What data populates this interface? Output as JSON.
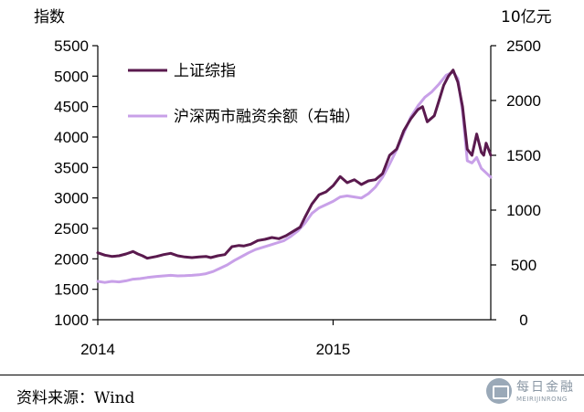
{
  "chart_data": {
    "type": "line",
    "left_axis": {
      "unit": "指数",
      "ylim": [
        1000,
        5500
      ],
      "ticks": [
        "1000",
        "1500",
        "2000",
        "2500",
        "3000",
        "3500",
        "4000",
        "4500",
        "5000",
        "5500"
      ]
    },
    "right_axis": {
      "unit": "10亿元",
      "ylim": [
        0,
        2500
      ],
      "ticks": [
        "0",
        "500",
        "1000",
        "1500",
        "2000",
        "2500"
      ]
    },
    "x_axis": {
      "range": [
        2014.0,
        2015.67
      ],
      "ticks": [
        {
          "value": 2014.0,
          "label": "2014"
        },
        {
          "value": 2015.0,
          "label": "2015"
        }
      ]
    },
    "series": [
      {
        "name": "上证综指",
        "axis": "left",
        "color": "#5a1a4e",
        "points": [
          [
            2014.0,
            2100
          ],
          [
            2014.03,
            2060
          ],
          [
            2014.06,
            2040
          ],
          [
            2014.09,
            2050
          ],
          [
            2014.12,
            2080
          ],
          [
            2014.15,
            2120
          ],
          [
            2014.17,
            2080
          ],
          [
            2014.19,
            2050
          ],
          [
            2014.21,
            2010
          ],
          [
            2014.25,
            2040
          ],
          [
            2014.28,
            2070
          ],
          [
            2014.31,
            2090
          ],
          [
            2014.34,
            2050
          ],
          [
            2014.37,
            2030
          ],
          [
            2014.4,
            2020
          ],
          [
            2014.43,
            2030
          ],
          [
            2014.46,
            2040
          ],
          [
            2014.48,
            2020
          ],
          [
            2014.51,
            2050
          ],
          [
            2014.54,
            2070
          ],
          [
            2014.57,
            2200
          ],
          [
            2014.6,
            2220
          ],
          [
            2014.62,
            2210
          ],
          [
            2014.65,
            2240
          ],
          [
            2014.68,
            2300
          ],
          [
            2014.71,
            2320
          ],
          [
            2014.74,
            2350
          ],
          [
            2014.77,
            2330
          ],
          [
            2014.8,
            2380
          ],
          [
            2014.83,
            2450
          ],
          [
            2014.86,
            2520
          ],
          [
            2014.88,
            2680
          ],
          [
            2014.91,
            2900
          ],
          [
            2014.94,
            3050
          ],
          [
            2014.97,
            3100
          ],
          [
            2015.0,
            3200
          ],
          [
            2015.03,
            3350
          ],
          [
            2015.06,
            3250
          ],
          [
            2015.09,
            3300
          ],
          [
            2015.12,
            3220
          ],
          [
            2015.15,
            3280
          ],
          [
            2015.18,
            3300
          ],
          [
            2015.21,
            3400
          ],
          [
            2015.24,
            3700
          ],
          [
            2015.27,
            3800
          ],
          [
            2015.3,
            4100
          ],
          [
            2015.33,
            4300
          ],
          [
            2015.36,
            4450
          ],
          [
            2015.38,
            4500
          ],
          [
            2015.4,
            4250
          ],
          [
            2015.43,
            4350
          ],
          [
            2015.45,
            4600
          ],
          [
            2015.47,
            4850
          ],
          [
            2015.49,
            5000
          ],
          [
            2015.51,
            5100
          ],
          [
            2015.53,
            4900
          ],
          [
            2015.55,
            4500
          ],
          [
            2015.57,
            3800
          ],
          [
            2015.59,
            3700
          ],
          [
            2015.61,
            4050
          ],
          [
            2015.63,
            3750
          ],
          [
            2015.64,
            3700
          ],
          [
            2015.65,
            3900
          ],
          [
            2015.67,
            3700
          ]
        ]
      },
      {
        "name": "沪深两市融资余额（右轴）",
        "axis": "right",
        "color": "#c8a0e8",
        "points": [
          [
            2014.0,
            350
          ],
          [
            2014.03,
            340
          ],
          [
            2014.06,
            350
          ],
          [
            2014.09,
            345
          ],
          [
            2014.12,
            355
          ],
          [
            2014.15,
            370
          ],
          [
            2014.18,
            375
          ],
          [
            2014.21,
            385
          ],
          [
            2014.25,
            395
          ],
          [
            2014.28,
            400
          ],
          [
            2014.31,
            405
          ],
          [
            2014.34,
            400
          ],
          [
            2014.37,
            402
          ],
          [
            2014.4,
            405
          ],
          [
            2014.43,
            410
          ],
          [
            2014.46,
            420
          ],
          [
            2014.49,
            440
          ],
          [
            2014.52,
            470
          ],
          [
            2014.55,
            500
          ],
          [
            2014.58,
            540
          ],
          [
            2014.61,
            575
          ],
          [
            2014.64,
            610
          ],
          [
            2014.67,
            640
          ],
          [
            2014.7,
            660
          ],
          [
            2014.73,
            680
          ],
          [
            2014.76,
            700
          ],
          [
            2014.79,
            720
          ],
          [
            2014.82,
            760
          ],
          [
            2014.85,
            810
          ],
          [
            2014.88,
            880
          ],
          [
            2014.91,
            970
          ],
          [
            2014.94,
            1020
          ],
          [
            2014.97,
            1050
          ],
          [
            2015.0,
            1080
          ],
          [
            2015.03,
            1120
          ],
          [
            2015.06,
            1130
          ],
          [
            2015.09,
            1120
          ],
          [
            2015.12,
            1110
          ],
          [
            2015.15,
            1150
          ],
          [
            2015.18,
            1210
          ],
          [
            2015.21,
            1300
          ],
          [
            2015.24,
            1420
          ],
          [
            2015.27,
            1550
          ],
          [
            2015.3,
            1700
          ],
          [
            2015.33,
            1850
          ],
          [
            2015.36,
            1950
          ],
          [
            2015.39,
            2030
          ],
          [
            2015.42,
            2080
          ],
          [
            2015.45,
            2150
          ],
          [
            2015.48,
            2230
          ],
          [
            2015.51,
            2260
          ],
          [
            2015.53,
            2200
          ],
          [
            2015.55,
            1900
          ],
          [
            2015.57,
            1450
          ],
          [
            2015.59,
            1430
          ],
          [
            2015.61,
            1480
          ],
          [
            2015.63,
            1380
          ],
          [
            2015.65,
            1340
          ],
          [
            2015.66,
            1320
          ],
          [
            2015.67,
            1300
          ]
        ]
      }
    ],
    "legend_position": "top-left",
    "grid": false
  },
  "source_label": "资料来源：Wind",
  "watermark": {
    "cn": "每日金融",
    "en": "MEIRIJINRONG"
  }
}
